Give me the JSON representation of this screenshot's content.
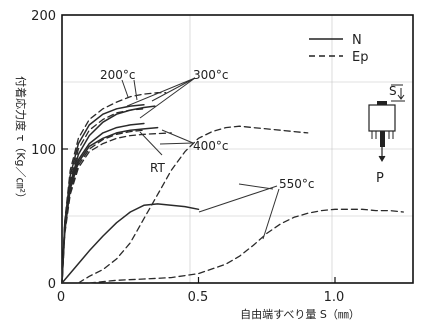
{
  "chart_data": {
    "type": "line",
    "xlabel": "自由端すべり量 S（㎜）",
    "ylabel": "付着応力度 τ（Kg／㎝²）",
    "xlim": [
      0,
      1.25
    ],
    "ylim": [
      0,
      200
    ],
    "x_ticks": [
      "0",
      "0.5",
      "1.0"
    ],
    "y_ticks": [
      "0",
      "100",
      "200"
    ],
    "grid": false,
    "legend": {
      "placement": "top-right",
      "entries": [
        {
          "label": "N",
          "style": "solid"
        },
        {
          "label": "Ep",
          "style": "dashed"
        }
      ]
    },
    "annotations": [
      "200°c",
      "300°c",
      "400°c",
      "RT",
      "550°c"
    ],
    "inset_labels": {
      "slip": "S",
      "load": "P"
    },
    "series": [
      {
        "condition": "RT",
        "style": "solid",
        "x": [
          0,
          0.01,
          0.03,
          0.06,
          0.1,
          0.15,
          0.2,
          0.25,
          0.3
        ],
        "y": [
          0,
          40,
          72,
          92,
          104,
          112,
          116,
          118,
          119
        ]
      },
      {
        "condition": "RT",
        "style": "dashed",
        "x": [
          0,
          0.01,
          0.03,
          0.06,
          0.1,
          0.15,
          0.2,
          0.25,
          0.3
        ],
        "y": [
          0,
          38,
          68,
          88,
          100,
          107,
          111,
          113,
          114
        ]
      },
      {
        "condition": "200°c",
        "style": "solid",
        "x": [
          0,
          0.01,
          0.03,
          0.06,
          0.1,
          0.15,
          0.2,
          0.25,
          0.3
        ],
        "y": [
          0,
          44,
          80,
          104,
          118,
          126,
          130,
          132,
          133
        ]
      },
      {
        "condition": "200°c",
        "style": "dashed",
        "x": [
          0,
          0.01,
          0.03,
          0.06,
          0.1,
          0.15,
          0.2,
          0.25,
          0.3
        ],
        "y": [
          0,
          42,
          76,
          100,
          114,
          122,
          127,
          129,
          130
        ]
      },
      {
        "condition": "300°c",
        "style": "solid",
        "x": [
          0,
          0.01,
          0.03,
          0.06,
          0.1,
          0.15,
          0.2,
          0.25,
          0.3,
          0.34
        ],
        "y": [
          0,
          40,
          74,
          96,
          110,
          120,
          126,
          129,
          131,
          132
        ]
      },
      {
        "condition": "300°c",
        "style": "dashed",
        "x": [
          0,
          0.01,
          0.03,
          0.06,
          0.1,
          0.15,
          0.2,
          0.25,
          0.3,
          0.35,
          0.38
        ],
        "y": [
          0,
          46,
          84,
          108,
          122,
          130,
          135,
          139,
          141,
          142,
          142
        ]
      },
      {
        "condition": "400°c",
        "style": "solid",
        "x": [
          0,
          0.01,
          0.03,
          0.06,
          0.1,
          0.15,
          0.2,
          0.25,
          0.3,
          0.35
        ],
        "y": [
          0,
          38,
          70,
          90,
          102,
          108,
          112,
          114,
          115,
          116
        ]
      },
      {
        "condition": "400°c",
        "style": "dashed",
        "x": [
          0,
          0.01,
          0.03,
          0.06,
          0.1,
          0.15,
          0.2,
          0.25,
          0.3,
          0.4
        ],
        "y": [
          0,
          36,
          66,
          86,
          98,
          104,
          108,
          110,
          111,
          112
        ]
      },
      {
        "condition": "550°c",
        "style": "solid",
        "x": [
          0,
          0.05,
          0.1,
          0.15,
          0.2,
          0.25,
          0.3,
          0.35,
          0.4,
          0.45,
          0.5
        ],
        "y": [
          0,
          12,
          24,
          35,
          45,
          53,
          58,
          59,
          58,
          57,
          55
        ]
      },
      {
        "condition": "550°c",
        "style": "dashed",
        "x": [
          0.06,
          0.1,
          0.15,
          0.2,
          0.25,
          0.3,
          0.35,
          0.4,
          0.45,
          0.5,
          0.55,
          0.6,
          0.65,
          0.7,
          0.75,
          0.8,
          0.85,
          0.9
        ],
        "y": [
          0,
          5,
          10,
          18,
          30,
          48,
          66,
          84,
          98,
          108,
          113,
          116,
          117,
          116,
          115,
          114,
          113,
          112
        ]
      },
      {
        "condition": "550°c",
        "style": "dashed",
        "x": [
          0.1,
          0.2,
          0.3,
          0.4,
          0.5,
          0.6,
          0.65,
          0.7,
          0.75,
          0.8,
          0.85,
          0.9,
          0.95,
          1.0,
          1.05,
          1.1,
          1.15,
          1.2,
          1.25
        ],
        "y": [
          0,
          2,
          3,
          4,
          7,
          14,
          20,
          28,
          37,
          44,
          49,
          52,
          54,
          55,
          55,
          55,
          54,
          54,
          53
        ]
      }
    ]
  }
}
